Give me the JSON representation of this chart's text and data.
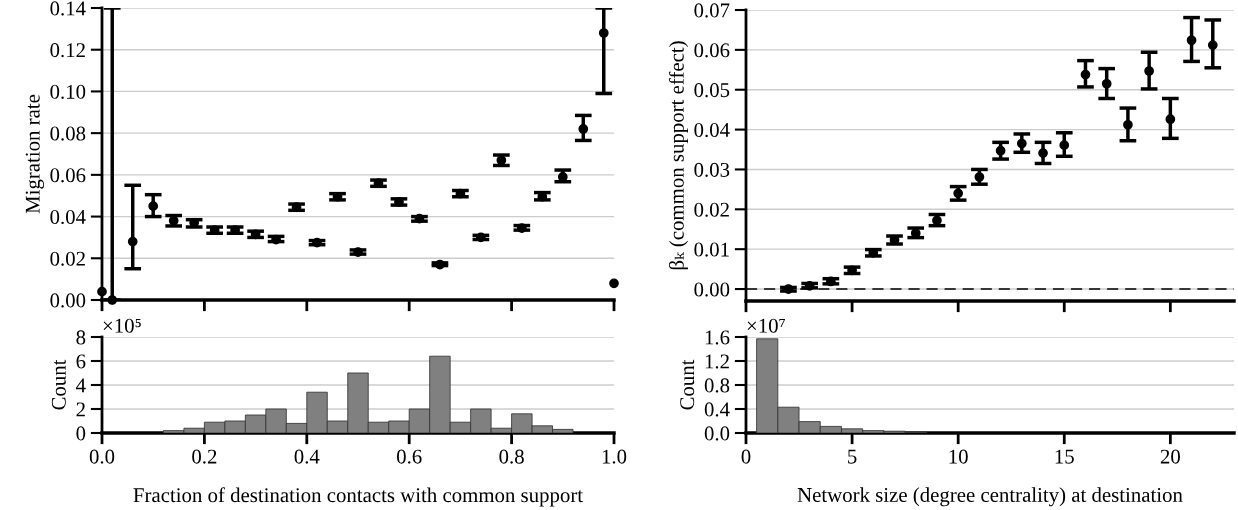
{
  "chart_data": [
    {
      "type": "scatter",
      "ylabel": "Migration rate",
      "color": "#000000",
      "marker": "circle",
      "grid": "y",
      "tick_labels": "y",
      "xticks": [
        {
          "value": 0,
          "label": null
        },
        {
          "value": 0.2,
          "label": null
        },
        {
          "value": 0.4,
          "label": null
        },
        {
          "value": 0.6,
          "label": null
        },
        {
          "value": 0.8,
          "label": null
        },
        {
          "value": 1.0,
          "label": null
        }
      ],
      "x": [
        0,
        0.02,
        0.06,
        0.1,
        0.14,
        0.18,
        0.22,
        0.26,
        0.3,
        0.34,
        0.38,
        0.42,
        0.46,
        0.5,
        0.54,
        0.58,
        0.62,
        0.66,
        0.7,
        0.74,
        0.78,
        0.82,
        0.86,
        0.9,
        0.94,
        0.98,
        1.0
      ],
      "values": [
        0.004,
        0.0,
        0.028,
        0.045,
        0.038,
        0.037,
        0.0335,
        0.0335,
        0.0315,
        0.029,
        0.0445,
        0.0275,
        0.0495,
        0.023,
        0.056,
        0.047,
        0.039,
        0.017,
        0.051,
        0.03,
        0.067,
        0.0345,
        0.0495,
        0.059,
        0.082,
        0.128,
        0.008
      ],
      "errors": [
        null,
        [
          0.0,
          0.14
        ],
        [
          0.015,
          0.055
        ],
        [
          0.04,
          0.0505
        ],
        [
          0.0355,
          0.0405
        ],
        [
          0.035,
          0.0385
        ],
        [
          0.032,
          0.035
        ],
        [
          0.032,
          0.035
        ],
        [
          0.03,
          0.033
        ],
        [
          0.028,
          0.0305
        ],
        [
          0.043,
          0.046
        ],
        [
          0.0265,
          0.0285
        ],
        [
          0.048,
          0.051
        ],
        [
          0.022,
          0.024
        ],
        [
          0.0545,
          0.0575
        ],
        [
          0.0455,
          0.0485
        ],
        [
          0.0378,
          0.04
        ],
        [
          0.0165,
          0.0178
        ],
        [
          0.0495,
          0.0525
        ],
        [
          0.029,
          0.031
        ],
        [
          0.0645,
          0.0695
        ],
        [
          0.0335,
          0.0357
        ],
        [
          0.048,
          0.0515
        ],
        [
          0.0567,
          0.0623
        ],
        [
          0.0765,
          0.0885
        ],
        [
          0.099,
          0.14
        ],
        null
      ],
      "xlim": [
        0,
        1
      ],
      "ylim": [
        0,
        0.14
      ],
      "yticks": [
        {
          "value": 0,
          "label": "0.00"
        },
        {
          "value": 0.02,
          "label": "0.02"
        },
        {
          "value": 0.04,
          "label": "0.04"
        },
        {
          "value": 0.06,
          "label": "0.06"
        },
        {
          "value": 0.08,
          "label": "0.08"
        },
        {
          "value": 0.1,
          "label": "0.10"
        },
        {
          "value": 0.12,
          "label": "0.12"
        },
        {
          "value": 0.14,
          "label": "0.14"
        }
      ]
    },
    {
      "type": "histogram",
      "xlabel": "Fraction of destination contacts with common support",
      "ylabel": "Count",
      "color": "#808080",
      "grid": "y",
      "annotations": [
        "×10⁵"
      ],
      "bins": [
        0,
        0.04,
        0.08,
        0.12,
        0.16,
        0.2,
        0.24,
        0.28,
        0.32,
        0.36,
        0.4,
        0.44,
        0.48,
        0.52,
        0.56,
        0.6,
        0.64,
        0.68,
        0.72,
        0.76,
        0.8,
        0.84,
        0.88,
        0.92,
        0.96,
        1.0
      ],
      "values": [
        0,
        0,
        0,
        0.2,
        0.4,
        0.9,
        1.0,
        1.5,
        2.0,
        0.8,
        3.4,
        1.0,
        5.0,
        0.9,
        1.0,
        2.0,
        6.4,
        0.9,
        2.0,
        0.4,
        1.6,
        0.6,
        0.3,
        0,
        0
      ],
      "xlim": [
        0,
        1
      ],
      "xticks": [
        {
          "value": 0,
          "label": "0.0"
        },
        {
          "value": 0.2,
          "label": "0.2"
        },
        {
          "value": 0.4,
          "label": "0.4"
        },
        {
          "value": 0.6,
          "label": "0.6"
        },
        {
          "value": 0.8,
          "label": "0.8"
        },
        {
          "value": 1.0,
          "label": "1.0"
        }
      ],
      "ylim": [
        0,
        8
      ],
      "yticks": [
        0,
        2,
        4,
        6,
        8
      ]
    },
    {
      "type": "scatter",
      "ylabel": "βₖ (common support effect)",
      "color": "#000000",
      "marker": "circle",
      "grid": "y",
      "tick_labels": "y",
      "x": [
        2,
        3,
        4,
        5,
        6,
        7,
        8,
        9,
        10,
        11,
        12,
        13,
        14,
        15,
        16,
        17,
        18,
        19,
        20,
        21,
        22
      ],
      "values": [
        0.0,
        0.0008,
        0.0019,
        0.0047,
        0.0091,
        0.0123,
        0.014,
        0.0172,
        0.024,
        0.0281,
        0.0347,
        0.0365,
        0.0341,
        0.0361,
        0.0538,
        0.0515,
        0.0412,
        0.0547,
        0.0426,
        0.0624,
        0.0612
      ],
      "errors": [
        [
          -0.0005,
          0.0004
        ],
        [
          0.0003,
          0.0014
        ],
        [
          0.0013,
          0.0026
        ],
        [
          0.0039,
          0.0055
        ],
        [
          0.0083,
          0.0099
        ],
        [
          0.0113,
          0.0133
        ],
        [
          0.0129,
          0.0153
        ],
        [
          0.0159,
          0.0187
        ],
        [
          0.0223,
          0.0257
        ],
        [
          0.0263,
          0.03
        ],
        [
          0.0326,
          0.0368
        ],
        [
          0.0343,
          0.0389
        ],
        [
          0.0315,
          0.0368
        ],
        [
          0.0333,
          0.0392
        ],
        [
          0.0507,
          0.0573
        ],
        [
          0.0478,
          0.0553
        ],
        [
          0.0372,
          0.0454
        ],
        [
          0.0502,
          0.0594
        ],
        [
          0.0378,
          0.0478
        ],
        [
          0.0571,
          0.0681
        ],
        [
          0.0555,
          0.0675
        ]
      ],
      "ref_lines": [
        {
          "axis": "y",
          "value": 0,
          "line_style": "dashed",
          "color": "#000000"
        }
      ],
      "xlim": [
        0,
        23
      ],
      "xticks": [
        {
          "value": 0,
          "label": null
        },
        {
          "value": 5,
          "label": null
        },
        {
          "value": 10,
          "label": null
        },
        {
          "value": 15,
          "label": null
        },
        {
          "value": 20,
          "label": null
        }
      ],
      "ylim": [
        -0.003,
        0.07
      ],
      "yticks": [
        {
          "value": 0,
          "label": "0.00"
        },
        {
          "value": 0.01,
          "label": "0.01"
        },
        {
          "value": 0.02,
          "label": "0.02"
        },
        {
          "value": 0.03,
          "label": "0.03"
        },
        {
          "value": 0.04,
          "label": "0.04"
        },
        {
          "value": 0.05,
          "label": "0.05"
        },
        {
          "value": 0.06,
          "label": "0.06"
        },
        {
          "value": 0.07,
          "label": "0.07"
        }
      ]
    },
    {
      "type": "histogram",
      "xlabel": "Network size (degree centrality) at destination",
      "ylabel": "Count",
      "color": "#808080",
      "grid": "y",
      "annotations": [
        "×10⁷"
      ],
      "bins": [
        0.5,
        1.5,
        2.5,
        3.5,
        4.5,
        5.5,
        6.5,
        7.5,
        8.5
      ],
      "values": [
        1.57,
        0.43,
        0.19,
        0.11,
        0.07,
        0.04,
        0.03,
        0.01
      ],
      "xlim": [
        0,
        23
      ],
      "xticks": [
        0,
        5,
        10,
        15,
        20
      ],
      "ylim": [
        0,
        1.6
      ],
      "yticks": [
        {
          "value": 0,
          "label": "0.0"
        },
        {
          "value": 0.4,
          "label": "0.4"
        },
        {
          "value": 0.8,
          "label": "0.8"
        },
        {
          "value": 1.2,
          "label": "1.2"
        },
        {
          "value": 1.6,
          "label": "1.6"
        }
      ]
    }
  ]
}
